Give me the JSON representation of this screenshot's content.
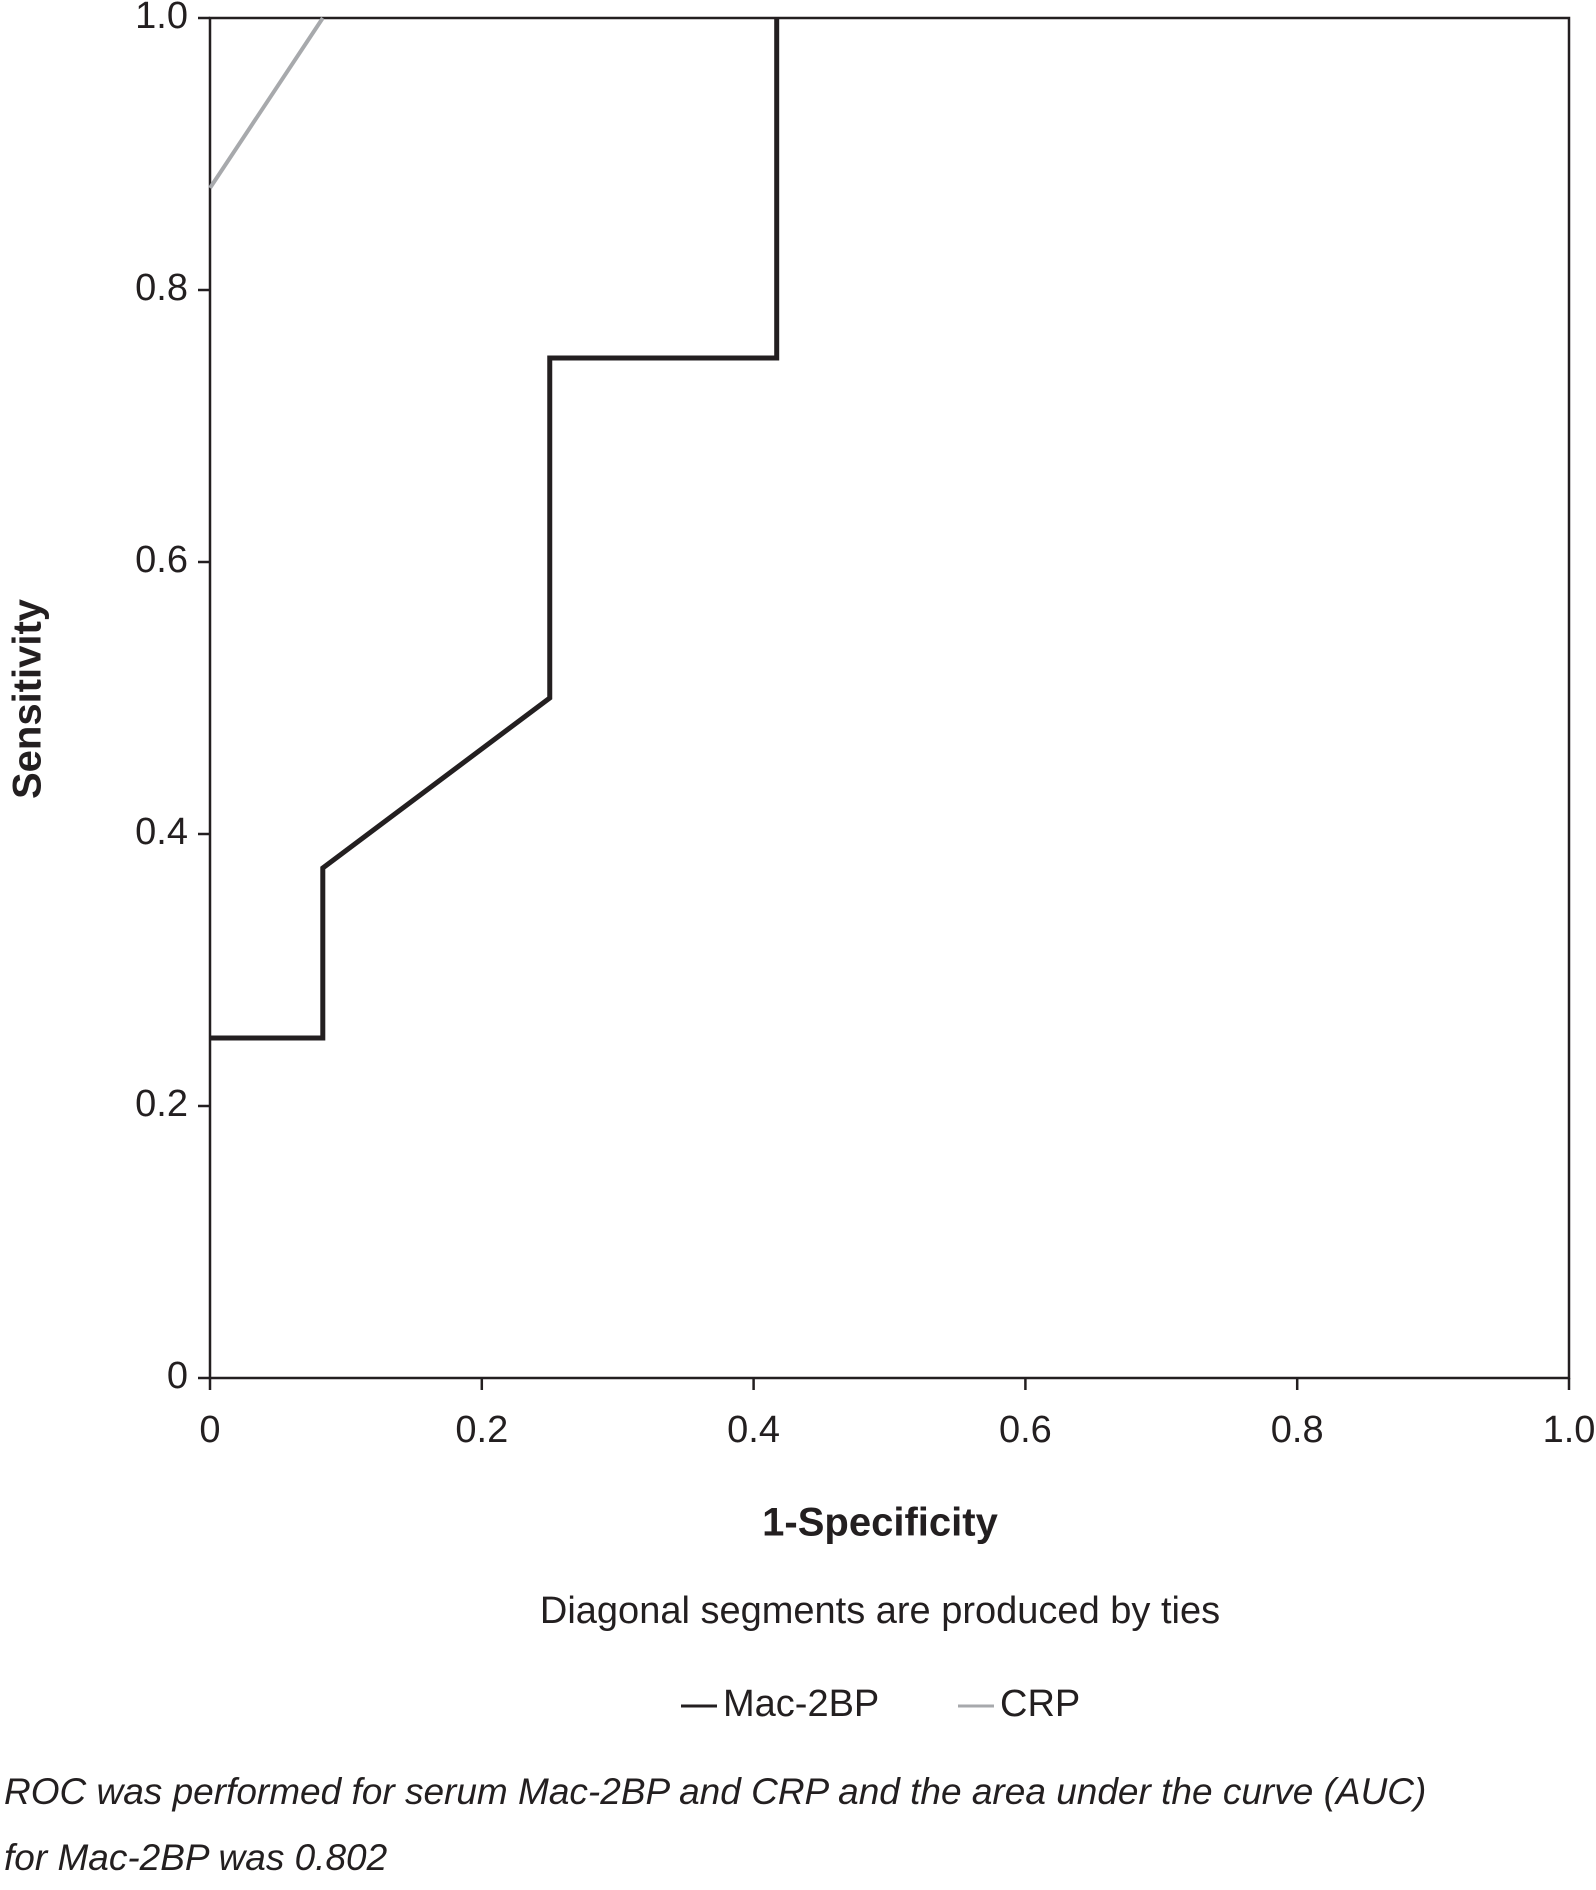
{
  "chart_data": {
    "type": "line",
    "xlabel": "1-Specificity",
    "ylabel": "Sensitivity",
    "note": "Diagonal segments are produced by ties",
    "caption": [
      "ROC was performed for serum Mac-2BP and CRP and the area under the curve (AUC)",
      "for Mac-2BP was 0.802"
    ],
    "series": [
      {
        "name": "Mac-2BP",
        "color": "#231f20",
        "x": [
          0,
          0.083,
          0.083,
          0.25,
          0.25,
          0.417,
          0.417
        ],
        "values": [
          0.25,
          0.25,
          0.375,
          0.5,
          0.75,
          0.75,
          1.0
        ]
      },
      {
        "name": "CRP",
        "color": "#a7a9ac",
        "x": [
          0,
          0.083
        ],
        "values": [
          0.875,
          1.0
        ]
      }
    ],
    "xlim": [
      0,
      1
    ],
    "ylim": [
      0,
      1
    ],
    "xticks": [
      0,
      0.2,
      0.4,
      0.6,
      0.8,
      {
        "value": 1,
        "label": "1.0"
      }
    ],
    "yticks": [
      0,
      0.2,
      0.4,
      0.6,
      0.8,
      {
        "value": 1,
        "label": "1.0"
      }
    ]
  }
}
